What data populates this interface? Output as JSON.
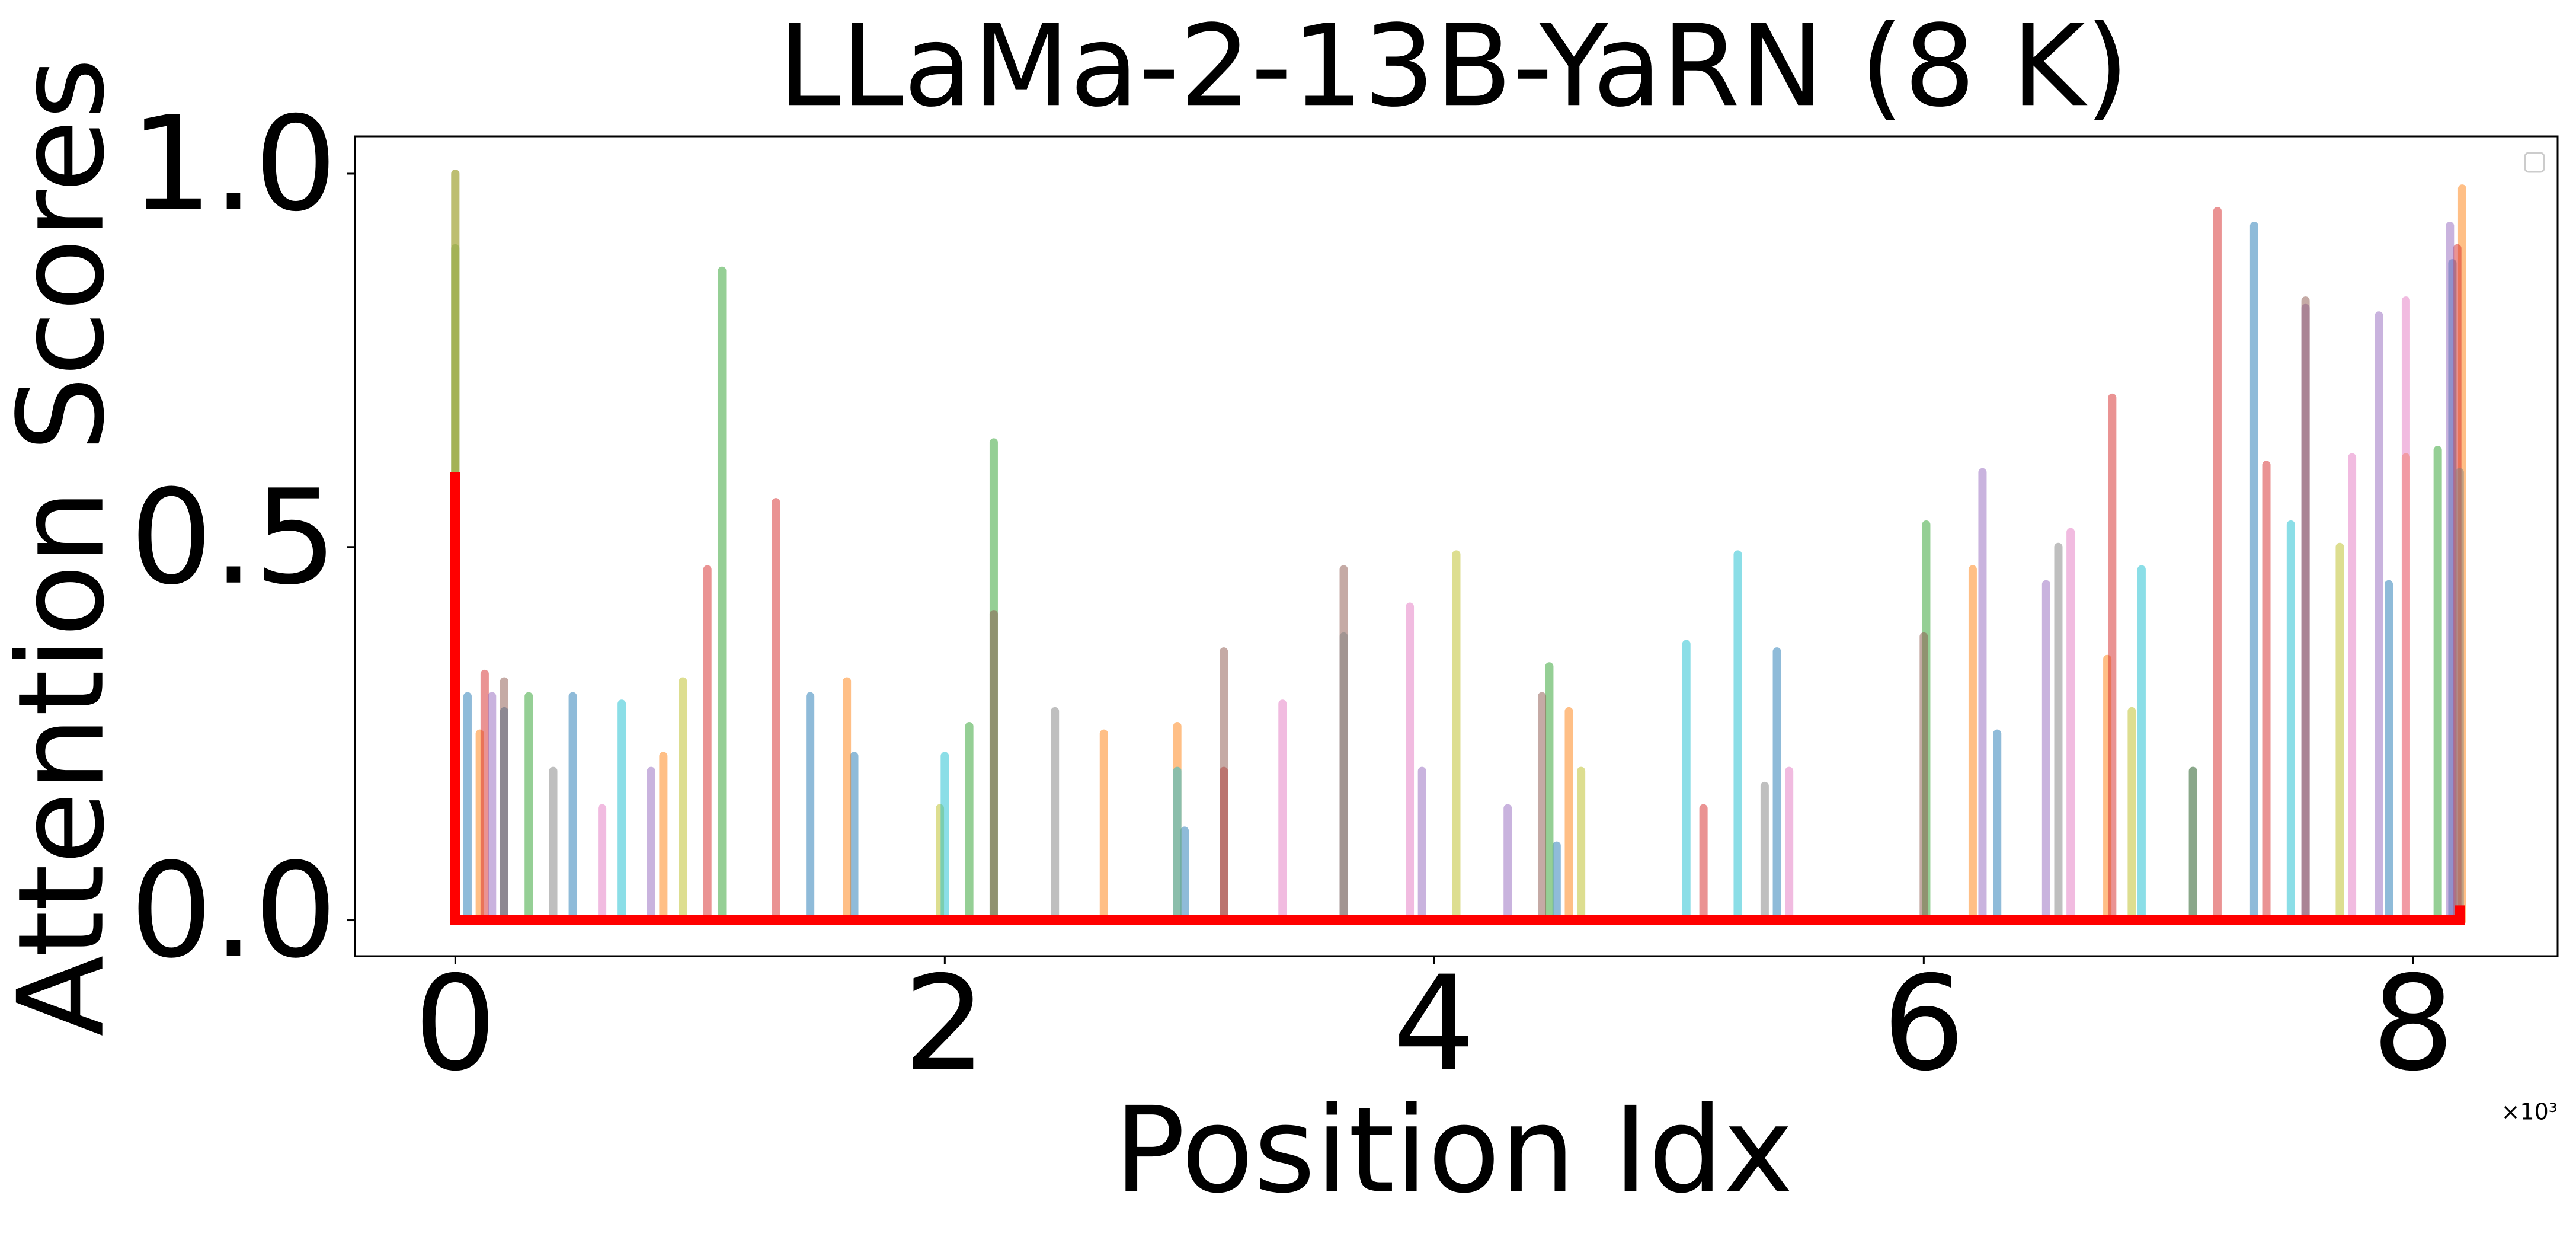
{
  "chart_data": {
    "type": "spike",
    "title": "LLaMa-2-13B-YaRN (8 K)",
    "x_label": "Position Idx",
    "y_label": "Attention Scores",
    "x_offset_text": "×10³",
    "xlim": [
      -0.41,
      8.59
    ],
    "ylim": [
      -0.048,
      1.05
    ],
    "xticks": [
      0,
      2,
      4,
      6,
      8
    ],
    "yticks": [
      {
        "value": 0,
        "label": "0.0"
      },
      0.5,
      {
        "value": 1,
        "label": "1.0"
      }
    ],
    "alpha": 0.5,
    "legend": "upper right",
    "series": [
      {
        "color": "#1f77b4",
        "x": [
          0.05,
          0.2,
          0.48,
          1.45,
          1.63,
          2.98,
          4.5,
          5.4,
          6.3,
          7.35,
          7.9,
          8.16
        ],
        "values": [
          0.3,
          0.28,
          0.3,
          0.3,
          0.22,
          0.12,
          0.1,
          0.36,
          0.25,
          0.93,
          0.45,
          0.88
        ]
      },
      {
        "color": "#ff7f0e",
        "x": [
          0.1,
          0.85,
          1.6,
          2.65,
          2.95,
          4.55,
          6.2,
          6.75,
          7.97,
          8.2
        ],
        "values": [
          0.25,
          0.22,
          0.32,
          0.25,
          0.26,
          0.28,
          0.47,
          0.35,
          0.62,
          0.98
        ]
      },
      {
        "color": "#2ca02c",
        "x": [
          0.0,
          0.3,
          1.09,
          2.1,
          2.2,
          4.47,
          6.01,
          7.1,
          8.1
        ],
        "values": [
          0.9,
          0.3,
          0.87,
          0.26,
          0.64,
          0.34,
          0.53,
          0.2,
          0.63
        ]
      },
      {
        "color": "#d62728",
        "x": [
          0.12,
          1.03,
          1.31,
          3.14,
          5.1,
          6.77,
          7.2,
          7.4,
          8.18
        ],
        "values": [
          0.33,
          0.47,
          0.56,
          0.2,
          0.15,
          0.7,
          0.95,
          0.61,
          0.9
        ]
      },
      {
        "color": "#9467bd",
        "x": [
          0.15,
          0.8,
          3.95,
          4.3,
          6.24,
          6.5,
          7.56,
          7.86,
          8.15
        ],
        "values": [
          0.3,
          0.2,
          0.2,
          0.15,
          0.6,
          0.45,
          0.82,
          0.81,
          0.93
        ]
      },
      {
        "color": "#8c564b",
        "x": [
          0.2,
          2.2,
          3.14,
          3.63,
          4.44,
          6.0,
          7.56
        ],
        "values": [
          0.32,
          0.41,
          0.36,
          0.47,
          0.3,
          0.38,
          0.83
        ]
      },
      {
        "color": "#e377c2",
        "x": [
          0.6,
          3.38,
          3.9,
          5.45,
          6.6,
          7.75,
          7.97
        ],
        "values": [
          0.15,
          0.29,
          0.42,
          0.2,
          0.52,
          0.62,
          0.83
        ]
      },
      {
        "color": "#7f7f7f",
        "x": [
          0.0,
          0.4,
          2.45,
          3.63,
          5.35,
          6.55,
          7.1,
          8.19
        ],
        "values": [
          1.0,
          0.2,
          0.28,
          0.38,
          0.18,
          0.5,
          0.2,
          0.6
        ]
      },
      {
        "color": "#bcbd22",
        "x": [
          0.0,
          0.93,
          1.98,
          4.09,
          4.6,
          6.85,
          7.7
        ],
        "values": [
          1.0,
          0.32,
          0.15,
          0.49,
          0.2,
          0.28,
          0.5
        ]
      },
      {
        "color": "#17becf",
        "x": [
          0.68,
          2.0,
          2.95,
          5.03,
          5.24,
          6.89,
          7.5
        ],
        "values": [
          0.29,
          0.22,
          0.2,
          0.37,
          0.49,
          0.47,
          0.53
        ]
      },
      {
        "color": "#ff0000",
        "type": "line",
        "x": [
          0,
          0,
          8.19,
          8.19
        ],
        "values": [
          0.6,
          0,
          0,
          0.02
        ]
      }
    ]
  }
}
